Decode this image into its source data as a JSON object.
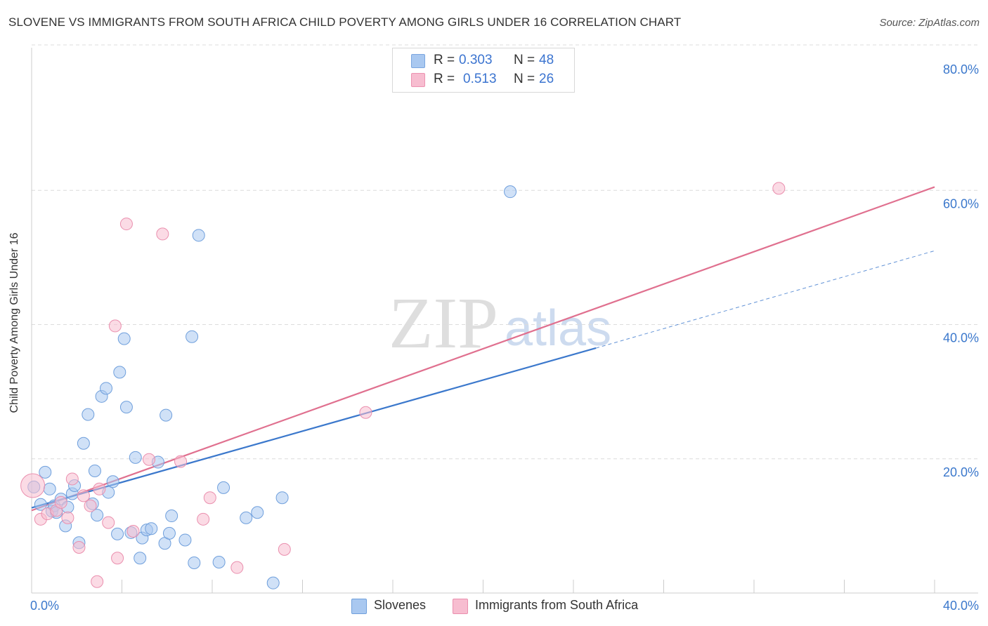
{
  "title": "SLOVENE VS IMMIGRANTS FROM SOUTH AFRICA CHILD POVERTY AMONG GIRLS UNDER 16 CORRELATION CHART",
  "source": "Source: ZipAtlas.com",
  "watermark": {
    "part1": "ZIP",
    "part2": "atlas"
  },
  "stats_legend": [
    {
      "r_label": "R =",
      "r_value": "0.303",
      "n_label": "N =",
      "n_value": "48",
      "color": "#a9c8f0",
      "border": "#7aa6e0"
    },
    {
      "r_label": "R =",
      "r_value": "0.513",
      "n_label": "N =",
      "n_value": "26",
      "color": "#f7bdd0",
      "border": "#ec93b1"
    }
  ],
  "chart_data": {
    "type": "scatter",
    "title": "SLOVENE VS IMMIGRANTS FROM SOUTH AFRICA CHILD POVERTY AMONG GIRLS UNDER 16 CORRELATION CHART",
    "xlabel": "",
    "ylabel": "Child Poverty Among Girls Under 16",
    "xlim": [
      0,
      40
    ],
    "ylim": [
      0,
      80
    ],
    "x_tick_labels": [
      "0.0%",
      "40.0%"
    ],
    "y_ticks": [
      20,
      40,
      60,
      80
    ],
    "y_tick_labels": [
      "20.0%",
      "40.0%",
      "60.0%",
      "80.0%"
    ],
    "grid": "horizontal dashed",
    "legend_position": "bottom-center",
    "series": [
      {
        "name": "Slovenes",
        "color": "#a9c8f0",
        "stroke": "#6f9fdc",
        "line_color": "#3b78cc",
        "trend": {
          "x0": 0,
          "y0": 12.7,
          "x1": 25,
          "y1": 36.5,
          "dashed_to_x": 40,
          "dashed_to_y": 51.0
        },
        "points": [
          [
            0.1,
            15.8
          ],
          [
            0.4,
            13.2
          ],
          [
            0.6,
            18.0
          ],
          [
            0.8,
            15.5
          ],
          [
            0.9,
            12.2
          ],
          [
            1.0,
            13.0
          ],
          [
            1.1,
            12.0
          ],
          [
            1.3,
            14.0
          ],
          [
            1.5,
            10.0
          ],
          [
            1.6,
            12.8
          ],
          [
            1.8,
            14.8
          ],
          [
            1.9,
            16.0
          ],
          [
            2.1,
            7.5
          ],
          [
            2.3,
            22.3
          ],
          [
            2.5,
            26.6
          ],
          [
            2.7,
            13.3
          ],
          [
            2.8,
            18.2
          ],
          [
            2.9,
            11.6
          ],
          [
            3.1,
            29.3
          ],
          [
            3.3,
            30.5
          ],
          [
            3.4,
            15.0
          ],
          [
            3.6,
            16.6
          ],
          [
            3.8,
            8.8
          ],
          [
            3.9,
            32.9
          ],
          [
            4.1,
            37.9
          ],
          [
            4.2,
            27.7
          ],
          [
            4.4,
            9.0
          ],
          [
            4.6,
            20.2
          ],
          [
            4.8,
            5.2
          ],
          [
            4.9,
            8.2
          ],
          [
            5.1,
            9.4
          ],
          [
            5.3,
            9.6
          ],
          [
            5.6,
            19.5
          ],
          [
            5.9,
            7.4
          ],
          [
            5.95,
            26.5
          ],
          [
            6.1,
            8.9
          ],
          [
            6.2,
            11.5
          ],
          [
            6.8,
            7.9
          ],
          [
            7.1,
            38.2
          ],
          [
            7.2,
            4.5
          ],
          [
            7.4,
            53.3
          ],
          [
            8.3,
            4.6
          ],
          [
            8.5,
            15.7
          ],
          [
            9.5,
            11.2
          ],
          [
            10.0,
            12.0
          ],
          [
            10.7,
            1.5
          ],
          [
            11.1,
            14.2
          ],
          [
            21.2,
            59.8
          ]
        ]
      },
      {
        "name": "Immigrants from South Africa",
        "color": "#f7bdd0",
        "stroke": "#ea8fae",
        "line_color": "#e0708f",
        "trend": {
          "x0": 0,
          "y0": 12.3,
          "x1": 40,
          "y1": 60.5
        },
        "points": [
          [
            0.05,
            16.0
          ],
          [
            0.4,
            11.0
          ],
          [
            0.7,
            11.8
          ],
          [
            1.1,
            12.3
          ],
          [
            1.3,
            13.5
          ],
          [
            1.6,
            11.2
          ],
          [
            1.8,
            17.0
          ],
          [
            2.1,
            6.8
          ],
          [
            2.3,
            14.5
          ],
          [
            2.6,
            13.0
          ],
          [
            2.9,
            1.7
          ],
          [
            3.0,
            15.5
          ],
          [
            3.4,
            10.5
          ],
          [
            3.7,
            39.8
          ],
          [
            3.8,
            5.2
          ],
          [
            4.2,
            55.0
          ],
          [
            4.5,
            9.2
          ],
          [
            5.2,
            19.9
          ],
          [
            5.8,
            53.5
          ],
          [
            6.6,
            19.6
          ],
          [
            7.6,
            11.0
          ],
          [
            7.9,
            14.2
          ],
          [
            9.1,
            3.8
          ],
          [
            11.2,
            6.5
          ],
          [
            14.8,
            26.9
          ],
          [
            33.1,
            60.3
          ]
        ]
      }
    ]
  }
}
